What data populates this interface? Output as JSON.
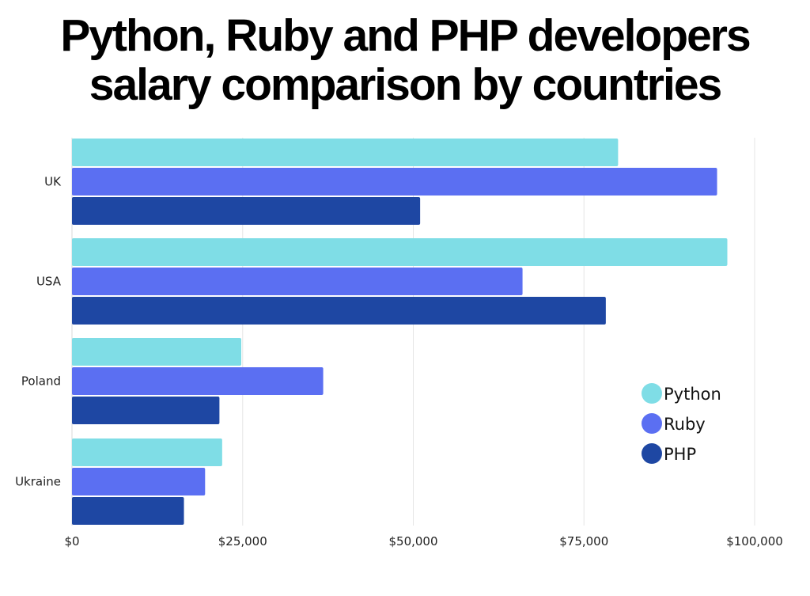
{
  "header": {
    "title_line1": "Python, Ruby and PHP developers",
    "title_line2": "salary comparison by countries"
  },
  "chart_data": {
    "type": "bar",
    "orientation": "horizontal",
    "categories": [
      "UK",
      "USA",
      "Poland",
      "Ukraine"
    ],
    "series": [
      {
        "name": "Python",
        "color": "#7fdde6",
        "values": [
          80000,
          96000,
          24800,
          22000
        ]
      },
      {
        "name": "Ruby",
        "color": "#5b6ff2",
        "values": [
          94500,
          66000,
          36800,
          19500
        ]
      },
      {
        "name": "PHP",
        "color": "#1e47a3",
        "values": [
          51000,
          78200,
          21600,
          16400
        ]
      }
    ],
    "xlim": [
      0,
      100000
    ],
    "x_ticks": [
      0,
      25000,
      50000,
      75000,
      100000
    ],
    "x_tick_labels": [
      "$0",
      "$25,000",
      "$50,000",
      "$75,000",
      "$100,000"
    ],
    "grid": "vertical",
    "legend_position": "bottom-right"
  }
}
